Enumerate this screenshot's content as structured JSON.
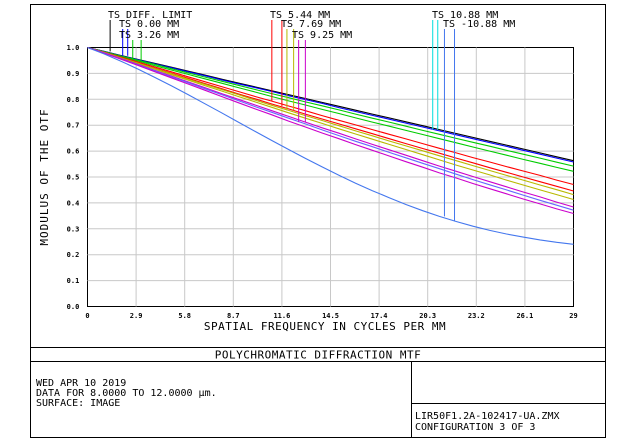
{
  "chart_data": {
    "type": "line",
    "title": "POLYCHROMATIC DIFFRACTION MTF",
    "xlabel": "SPATIAL FREQUENCY IN CYCLES PER MM",
    "ylabel": "MODULUS OF THE OTF",
    "xlim": [
      0,
      29
    ],
    "ylim": [
      0,
      1.0
    ],
    "grid": true,
    "x_ticks": [
      "0",
      "2.9",
      "5.8",
      "8.7",
      "11.6",
      "14.5",
      "17.4",
      "20.3",
      "23.2",
      "26.1",
      "29"
    ],
    "y_ticks": [
      "0.0",
      "0.1",
      "0.2",
      "0.3",
      "0.4",
      "0.5",
      "0.6",
      "0.7",
      "0.8",
      "0.9",
      "1.0"
    ],
    "legend": [
      {
        "text": "TS DIFF. LIMIT",
        "color": "#000000",
        "marker_x": [
          1.35
        ]
      },
      {
        "text": "TS 0.00 MM",
        "color": "#0000ff",
        "marker_x": [
          2.1,
          2.4
        ]
      },
      {
        "text": "TS 3.26 MM",
        "color": "#00cc00",
        "marker_x": [
          2.7,
          3.2
        ]
      },
      {
        "text": "TS 5.44 MM",
        "color": "#ff0000",
        "marker_x": [
          11.0,
          11.6
        ]
      },
      {
        "text": "TS 7.69 MM",
        "color": "#b8b800",
        "marker_x": [
          11.9,
          12.3
        ]
      },
      {
        "text": "TS 9.25 MM",
        "color": "#cc00cc",
        "marker_x": [
          12.6,
          13.0
        ]
      },
      {
        "text": "TS 10.88 MM",
        "color": "#00dddd",
        "marker_x": [
          20.6,
          20.9
        ]
      },
      {
        "text": "TS -10.88 MM",
        "color": "#4477ee",
        "marker_x": [
          21.3,
          21.9
        ]
      }
    ],
    "x": [
      0,
      1,
      2,
      3,
      4,
      5,
      6,
      7,
      8,
      9,
      10,
      11,
      12,
      13,
      14,
      15,
      16,
      17,
      18,
      19,
      20,
      21,
      22,
      23,
      24,
      25,
      26,
      27,
      28,
      29
    ],
    "series": [
      {
        "color": "#000000",
        "values": [
          1.0,
          0.985,
          0.969,
          0.954,
          0.939,
          0.924,
          0.909,
          0.894,
          0.878,
          0.863,
          0.848,
          0.833,
          0.818,
          0.803,
          0.788,
          0.773,
          0.758,
          0.743,
          0.728,
          0.713,
          0.698,
          0.683,
          0.668,
          0.653,
          0.638,
          0.623,
          0.608,
          0.593,
          0.578,
          0.563
        ]
      },
      {
        "color": "#0000ff",
        "values": [
          1.0,
          0.985,
          0.968,
          0.953,
          0.937,
          0.922,
          0.906,
          0.891,
          0.875,
          0.86,
          0.845,
          0.83,
          0.814,
          0.799,
          0.784,
          0.768,
          0.753,
          0.738,
          0.723,
          0.708,
          0.693,
          0.678,
          0.663,
          0.648,
          0.633,
          0.618,
          0.603,
          0.588,
          0.573,
          0.558
        ]
      },
      {
        "color": "#00cc00",
        "values": [
          1.0,
          0.984,
          0.967,
          0.951,
          0.935,
          0.918,
          0.902,
          0.886,
          0.87,
          0.854,
          0.838,
          0.822,
          0.806,
          0.79,
          0.775,
          0.759,
          0.743,
          0.727,
          0.712,
          0.696,
          0.68,
          0.665,
          0.649,
          0.634,
          0.619,
          0.603,
          0.588,
          0.573,
          0.557,
          0.542
        ]
      },
      {
        "color": "#00cc00",
        "values": [
          1.0,
          0.983,
          0.965,
          0.948,
          0.93,
          0.913,
          0.896,
          0.879,
          0.862,
          0.845,
          0.828,
          0.811,
          0.794,
          0.778,
          0.761,
          0.745,
          0.728,
          0.712,
          0.696,
          0.68,
          0.664,
          0.648,
          0.632,
          0.616,
          0.6,
          0.584,
          0.568,
          0.553,
          0.537,
          0.522
        ]
      },
      {
        "color": "#ff0000",
        "values": [
          1.0,
          0.982,
          0.963,
          0.944,
          0.925,
          0.906,
          0.887,
          0.868,
          0.849,
          0.83,
          0.811,
          0.793,
          0.774,
          0.756,
          0.737,
          0.719,
          0.701,
          0.683,
          0.665,
          0.647,
          0.629,
          0.611,
          0.593,
          0.575,
          0.558,
          0.54,
          0.523,
          0.506,
          0.488,
          0.471
        ]
      },
      {
        "color": "#ff0000",
        "values": [
          1.0,
          0.981,
          0.961,
          0.941,
          0.921,
          0.901,
          0.881,
          0.861,
          0.841,
          0.821,
          0.802,
          0.782,
          0.763,
          0.743,
          0.724,
          0.705,
          0.686,
          0.667,
          0.648,
          0.629,
          0.61,
          0.592,
          0.573,
          0.555,
          0.536,
          0.518,
          0.5,
          0.482,
          0.464,
          0.446
        ]
      },
      {
        "color": "#b8b800",
        "values": [
          1.0,
          0.981,
          0.96,
          0.94,
          0.919,
          0.899,
          0.878,
          0.858,
          0.838,
          0.818,
          0.797,
          0.777,
          0.757,
          0.737,
          0.718,
          0.698,
          0.678,
          0.659,
          0.639,
          0.62,
          0.601,
          0.582,
          0.563,
          0.544,
          0.525,
          0.506,
          0.488,
          0.469,
          0.451,
          0.432
        ]
      },
      {
        "color": "#b8b800",
        "values": [
          1.0,
          0.98,
          0.959,
          0.938,
          0.917,
          0.895,
          0.874,
          0.853,
          0.832,
          0.811,
          0.79,
          0.769,
          0.748,
          0.727,
          0.707,
          0.686,
          0.666,
          0.646,
          0.626,
          0.606,
          0.586,
          0.566,
          0.546,
          0.527,
          0.508,
          0.488,
          0.469,
          0.45,
          0.432,
          0.413
        ]
      },
      {
        "color": "#cc00cc",
        "values": [
          1.0,
          0.979,
          0.957,
          0.935,
          0.912,
          0.89,
          0.867,
          0.845,
          0.822,
          0.8,
          0.778,
          0.756,
          0.734,
          0.712,
          0.69,
          0.669,
          0.647,
          0.626,
          0.605,
          0.584,
          0.563,
          0.542,
          0.522,
          0.502,
          0.482,
          0.462,
          0.442,
          0.423,
          0.403,
          0.384
        ]
      },
      {
        "color": "#6666ff",
        "values": [
          1.0,
          0.979,
          0.956,
          0.933,
          0.91,
          0.887,
          0.864,
          0.841,
          0.818,
          0.795,
          0.772,
          0.75,
          0.727,
          0.705,
          0.682,
          0.66,
          0.638,
          0.617,
          0.595,
          0.574,
          0.553,
          0.532,
          0.511,
          0.49,
          0.47,
          0.45,
          0.43,
          0.41,
          0.391,
          0.372
        ]
      },
      {
        "color": "#cc00cc",
        "values": [
          1.0,
          0.978,
          0.955,
          0.931,
          0.907,
          0.883,
          0.859,
          0.835,
          0.811,
          0.787,
          0.763,
          0.74,
          0.716,
          0.693,
          0.67,
          0.648,
          0.625,
          0.603,
          0.581,
          0.559,
          0.538,
          0.516,
          0.496,
          0.475,
          0.455,
          0.435,
          0.415,
          0.396,
          0.377,
          0.359
        ]
      },
      {
        "color": "#4477ee",
        "values": [
          1.0,
          0.975,
          0.947,
          0.917,
          0.885,
          0.852,
          0.818,
          0.783,
          0.748,
          0.712,
          0.676,
          0.641,
          0.606,
          0.572,
          0.539,
          0.507,
          0.476,
          0.447,
          0.42,
          0.394,
          0.37,
          0.348,
          0.328,
          0.31,
          0.294,
          0.28,
          0.268,
          0.257,
          0.248,
          0.24
        ]
      }
    ]
  },
  "footer": {
    "date": "WED APR 10 2019",
    "data_for": "DATA FOR 8.0000 TO 12.0000 µm.",
    "surface": "SURFACE: IMAGE",
    "file": "LIR50F1.2A-102417-UA.ZMX",
    "configuration": "CONFIGURATION 3 OF 3"
  }
}
